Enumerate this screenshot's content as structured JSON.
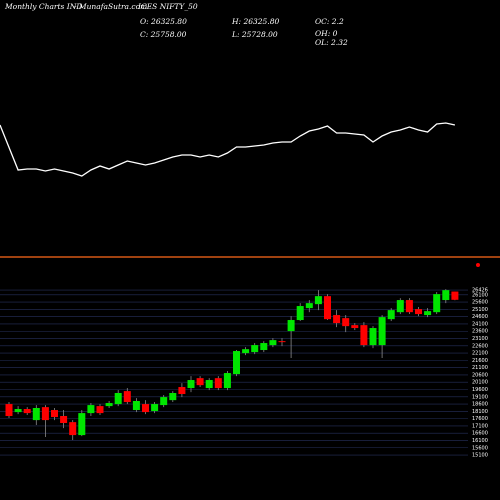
{
  "header": {
    "title": "Monthly Charts IND",
    "site": "- MunafaSutra.com",
    "symbol": "ICES NIFTY_50",
    "open": "O: 26325.80",
    "high": "H: 26325.80",
    "oc": "OC: 2.2",
    "close": "C: 25758.00",
    "low": "L: 25728.00",
    "oh": "OH: 0",
    "ol": "OL: 2.32"
  },
  "chart_data": [
    {
      "type": "line",
      "color": "#ffffff",
      "ylim": [
        0,
        100
      ],
      "values": [
        75,
        30,
        31,
        31,
        29,
        31,
        29,
        27,
        24,
        30,
        34,
        31,
        35,
        39,
        37,
        35,
        37,
        40,
        43,
        45,
        45,
        43,
        45,
        43,
        47,
        53,
        53,
        54,
        55,
        57,
        58,
        58,
        64,
        69,
        71,
        74,
        67,
        67,
        66,
        65,
        58,
        64,
        68,
        70,
        73,
        70,
        68,
        76,
        77,
        75
      ]
    },
    {
      "type": "candlestick",
      "up_color": "#00e600",
      "down_color": "#ff0000",
      "grid": true,
      "ylim": [
        15000,
        26500
      ],
      "yticks": [
        26426,
        26100,
        25600,
        25100,
        24600,
        24100,
        23600,
        23100,
        22600,
        22100,
        21600,
        21100,
        20600,
        20100,
        19600,
        19100,
        18600,
        18100,
        17600,
        17100,
        16600,
        16100,
        15600,
        15100
      ],
      "open": [
        18600,
        18050,
        18260,
        17500,
        18390,
        18190,
        17780,
        17360,
        16470,
        17980,
        18460,
        18460,
        18600,
        19490,
        18190,
        18600,
        18120,
        18530,
        18870,
        19770,
        19700,
        20380,
        19700,
        20380,
        19700,
        20660,
        22100,
        22170,
        22310,
        22650,
        22920,
        23610,
        24370,
        25190,
        25460,
        26010,
        24710,
        24500,
        24020,
        24020,
        22650,
        22650,
        24430,
        24910,
        25740,
        25120,
        24710,
        24910,
        25740,
        26325.8
      ],
      "high": [
        18740,
        18460,
        18390,
        18530,
        18530,
        18330,
        18190,
        17500,
        18190,
        18670,
        18600,
        18810,
        19560,
        19700,
        19010,
        18870,
        18740,
        19220,
        19490,
        20040,
        20520,
        20520,
        20380,
        20520,
        20870,
        22310,
        22510,
        22790,
        22920,
        23130,
        23130,
        24640,
        25530,
        25740,
        26420,
        26150,
        25050,
        24710,
        24160,
        24230,
        23950,
        24710,
        25190,
        25870,
        25870,
        25260,
        25190,
        26290,
        26490,
        26325.8
      ],
      "low": [
        17640,
        17910,
        17850,
        17160,
        16340,
        17500,
        16950,
        16130,
        16400,
        17780,
        17850,
        18330,
        18460,
        18600,
        18050,
        17910,
        17980,
        18390,
        18740,
        19080,
        19420,
        19770,
        19560,
        19560,
        19560,
        20520,
        21960,
        22030,
        22170,
        22510,
        22580,
        21760,
        24300,
        24910,
        25050,
        24370,
        23880,
        23540,
        23680,
        22510,
        22440,
        21760,
        24300,
        24780,
        24780,
        24640,
        24570,
        24780,
        25530,
        25728
      ],
      "close": [
        17780,
        18260,
        17980,
        18330,
        17500,
        17710,
        17300,
        16470,
        17980,
        18530,
        17980,
        18670,
        19360,
        18740,
        18810,
        18050,
        18600,
        19080,
        19360,
        19290,
        20250,
        19900,
        20250,
        19700,
        20730,
        22240,
        22370,
        22650,
        22790,
        22990,
        22860,
        24370,
        25330,
        25530,
        26010,
        24430,
        24160,
        23950,
        23820,
        22650,
        23820,
        24570,
        25050,
        25740,
        24910,
        24780,
        24980,
        26150,
        26420,
        25758
      ]
    }
  ]
}
